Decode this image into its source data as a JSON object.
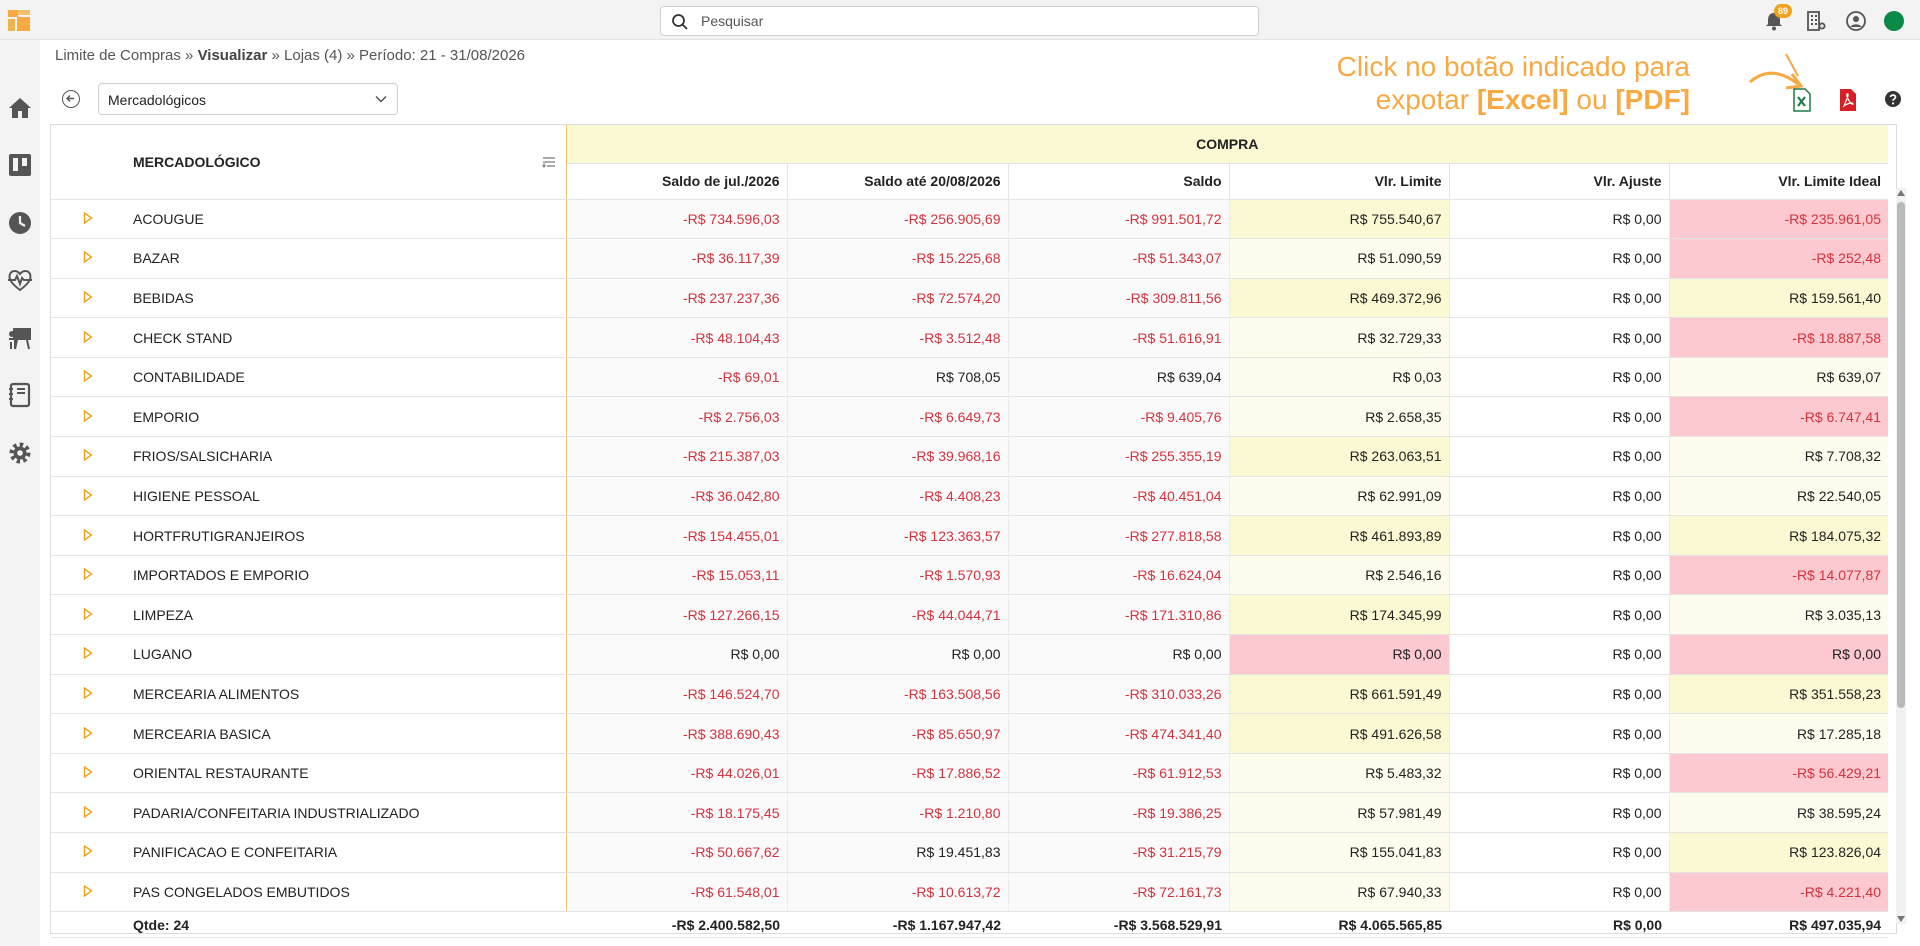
{
  "header": {
    "search_placeholder": "Pesquisar",
    "notification_count": "89"
  },
  "sidebar": {
    "items": [
      {
        "icon": "home-icon"
      },
      {
        "icon": "kanban-icon"
      },
      {
        "icon": "clock-icon"
      },
      {
        "icon": "heartbeat-icon"
      },
      {
        "icon": "presentation-icon"
      },
      {
        "icon": "book-icon"
      },
      {
        "icon": "gear-icon"
      }
    ]
  },
  "breadcrumb": {
    "part1": "Limite de Compras » ",
    "part2": "Visualizar",
    "part3": " » Lojas (4) » Período: 21 - 31/08/2026"
  },
  "filter": {
    "selected": "Mercadológicos"
  },
  "hint": {
    "line1": "Click no botão indicado para",
    "line2_a": "expotar ",
    "line2_b": "[Excel]",
    "line2_c": " ou ",
    "line2_d": "[PDF]"
  },
  "colors": {
    "accent": "#f7a944",
    "negative": "#d2333d",
    "highlight_yellow": "#fbf9d4",
    "highlight_red": "#fbc9cf",
    "excel_green": "#1e7a45",
    "pdf_red": "#d61f26"
  },
  "table": {
    "group_header": "COMPRA",
    "name_header": "MERCADOLÓGICO",
    "columns": [
      "Saldo de jul./2026",
      "Saldo até 20/08/2026",
      "Saldo",
      "Vlr. Limite",
      "Vlr. Ajuste",
      "Vlr. Limite Ideal"
    ],
    "rows": [
      {
        "name": "ACOUGUE",
        "c1": "-R$ 734.596,03",
        "c2": "-R$ 256.905,69",
        "c3": "-R$ 991.501,72",
        "c4": "R$ 755.540,67",
        "c5": "R$ 0,00",
        "c6": "-R$ 235.961,05",
        "c4bg": "y",
        "c6bg": "r"
      },
      {
        "name": "BAZAR",
        "c1": "-R$ 36.117,39",
        "c2": "-R$ 15.225,68",
        "c3": "-R$ 51.343,07",
        "c4": "R$ 51.090,59",
        "c5": "R$ 0,00",
        "c6": "-R$ 252,48",
        "c4bg": "ly",
        "c6bg": "r"
      },
      {
        "name": "BEBIDAS",
        "c1": "-R$ 237.237,36",
        "c2": "-R$ 72.574,20",
        "c3": "-R$ 309.811,56",
        "c4": "R$ 469.372,96",
        "c5": "R$ 0,00",
        "c6": "R$ 159.561,40",
        "c4bg": "y",
        "c6bg": "y"
      },
      {
        "name": "CHECK STAND",
        "c1": "-R$ 48.104,43",
        "c2": "-R$ 3.512,48",
        "c3": "-R$ 51.616,91",
        "c4": "R$ 32.729,33",
        "c5": "R$ 0,00",
        "c6": "-R$ 18.887,58",
        "c4bg": "ly",
        "c6bg": "r"
      },
      {
        "name": "CONTABILIDADE",
        "c1": "-R$ 69,01",
        "c2": "R$ 708,05",
        "c3": "R$ 639,04",
        "c4": "R$ 0,03",
        "c5": "R$ 0,00",
        "c6": "R$ 639,07",
        "c4bg": "ly",
        "c6bg": "ly"
      },
      {
        "name": "EMPORIO",
        "c1": "-R$ 2.756,03",
        "c2": "-R$ 6.649,73",
        "c3": "-R$ 9.405,76",
        "c4": "R$ 2.658,35",
        "c5": "R$ 0,00",
        "c6": "-R$ 6.747,41",
        "c4bg": "ly",
        "c6bg": "r"
      },
      {
        "name": "FRIOS/SALSICHARIA",
        "c1": "-R$ 215.387,03",
        "c2": "-R$ 39.968,16",
        "c3": "-R$ 255.355,19",
        "c4": "R$ 263.063,51",
        "c5": "R$ 0,00",
        "c6": "R$ 7.708,32",
        "c4bg": "y",
        "c6bg": "ly"
      },
      {
        "name": "HIGIENE PESSOAL",
        "c1": "-R$ 36.042,80",
        "c2": "-R$ 4.408,23",
        "c3": "-R$ 40.451,04",
        "c4": "R$ 62.991,09",
        "c5": "R$ 0,00",
        "c6": "R$ 22.540,05",
        "c4bg": "ly",
        "c6bg": "ly"
      },
      {
        "name": "HORTFRUTIGRANJEIROS",
        "c1": "-R$ 154.455,01",
        "c2": "-R$ 123.363,57",
        "c3": "-R$ 277.818,58",
        "c4": "R$ 461.893,89",
        "c5": "R$ 0,00",
        "c6": "R$ 184.075,32",
        "c4bg": "y",
        "c6bg": "y"
      },
      {
        "name": "IMPORTADOS E EMPORIO",
        "c1": "-R$ 15.053,11",
        "c2": "-R$ 1.570,93",
        "c3": "-R$ 16.624,04",
        "c4": "R$ 2.546,16",
        "c5": "R$ 0,00",
        "c6": "-R$ 14.077,87",
        "c4bg": "ly",
        "c6bg": "r"
      },
      {
        "name": "LIMPEZA",
        "c1": "-R$ 127.266,15",
        "c2": "-R$ 44.044,71",
        "c3": "-R$ 171.310,86",
        "c4": "R$ 174.345,99",
        "c5": "R$ 0,00",
        "c6": "R$ 3.035,13",
        "c4bg": "y",
        "c6bg": "ly"
      },
      {
        "name": "LUGANO",
        "c1": "R$ 0,00",
        "c2": "R$ 0,00",
        "c3": "R$ 0,00",
        "c4": "R$ 0,00",
        "c5": "R$ 0,00",
        "c6": "R$ 0,00",
        "c4bg": "r",
        "c6bg": "r"
      },
      {
        "name": "MERCEARIA ALIMENTOS",
        "c1": "-R$ 146.524,70",
        "c2": "-R$ 163.508,56",
        "c3": "-R$ 310.033,26",
        "c4": "R$ 661.591,49",
        "c5": "R$ 0,00",
        "c6": "R$ 351.558,23",
        "c4bg": "y",
        "c6bg": "y"
      },
      {
        "name": "MERCEARIA BASICA",
        "c1": "-R$ 388.690,43",
        "c2": "-R$ 85.650,97",
        "c3": "-R$ 474.341,40",
        "c4": "R$ 491.626,58",
        "c5": "R$ 0,00",
        "c6": "R$ 17.285,18",
        "c4bg": "y",
        "c6bg": "ly"
      },
      {
        "name": "ORIENTAL RESTAURANTE",
        "c1": "-R$ 44.026,01",
        "c2": "-R$ 17.886,52",
        "c3": "-R$ 61.912,53",
        "c4": "R$ 5.483,32",
        "c5": "R$ 0,00",
        "c6": "-R$ 56.429,21",
        "c4bg": "ly",
        "c6bg": "r"
      },
      {
        "name": "PADARIA/CONFEITARIA INDUSTRIALIZADO",
        "c1": "-R$ 18.175,45",
        "c2": "-R$ 1.210,80",
        "c3": "-R$ 19.386,25",
        "c4": "R$ 57.981,49",
        "c5": "R$ 0,00",
        "c6": "R$ 38.595,24",
        "c4bg": "ly",
        "c6bg": "ly"
      },
      {
        "name": "PANIFICACAO E CONFEITARIA",
        "c1": "-R$ 50.667,62",
        "c2": "R$ 19.451,83",
        "c3": "-R$ 31.215,79",
        "c4": "R$ 155.041,83",
        "c5": "R$ 0,00",
        "c6": "R$ 123.826,04",
        "c4bg": "ly",
        "c6bg": "y"
      },
      {
        "name": "PAS CONGELADOS EMBUTIDOS",
        "c1": "-R$ 61.548,01",
        "c2": "-R$ 10.613,72",
        "c3": "-R$ 72.161,73",
        "c4": "R$ 67.940,33",
        "c5": "R$ 0,00",
        "c6": "-R$ 4.221,40",
        "c4bg": "ly",
        "c6bg": "r"
      }
    ],
    "footer": {
      "label": "Qtde: 24",
      "c1": "-R$ 2.400.582,50",
      "c2": "-R$ 1.167.947,42",
      "c3": "-R$ 3.568.529,91",
      "c4": "R$ 4.065.565,85",
      "c5": "R$ 0,00",
      "c6": "R$ 497.035,94"
    }
  }
}
